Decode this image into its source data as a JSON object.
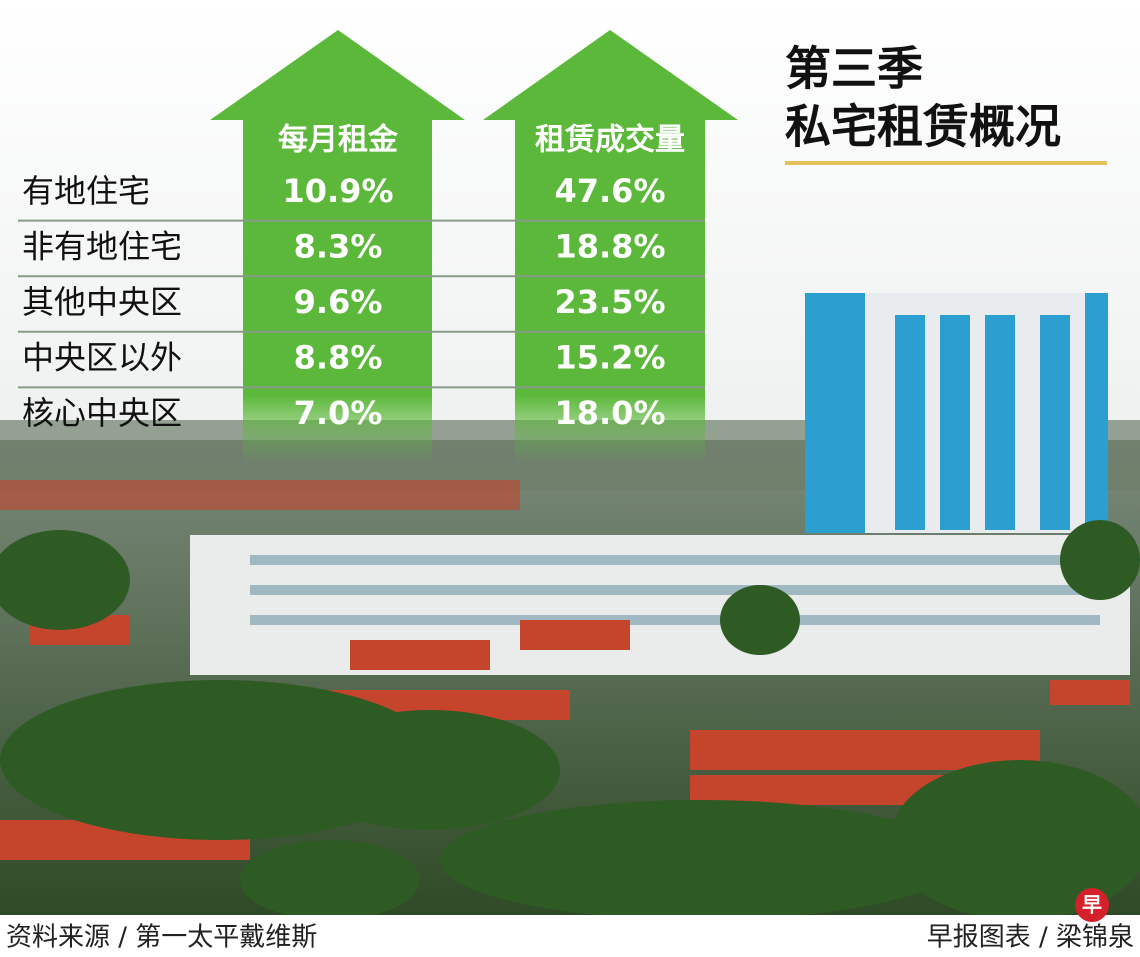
{
  "header": {
    "title_lines": [
      "第三季",
      "私宅租赁概况"
    ]
  },
  "table": {
    "columns": [
      "每月租金",
      "租赁成交量"
    ],
    "rows": [
      {
        "label": "有地住宅",
        "values": [
          "10.9%",
          "47.6%"
        ]
      },
      {
        "label": "非有地住宅",
        "values": [
          "8.3%",
          "18.8%"
        ]
      },
      {
        "label": "其他中央区",
        "values": [
          "9.6%",
          "23.5%"
        ]
      },
      {
        "label": "中央区以外",
        "values": [
          "8.8%",
          "15.2%"
        ]
      },
      {
        "label": "核心中央区",
        "values": [
          "7.0%",
          "18.0%"
        ]
      }
    ]
  },
  "footer": {
    "source": "资料来源 / 第一太平戴维斯",
    "credit": "早报图表 / 梁锦泉",
    "logo": "早"
  }
}
